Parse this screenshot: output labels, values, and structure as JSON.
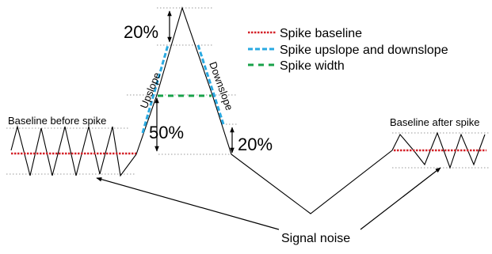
{
  "labels": {
    "pct_top": "20%",
    "pct_mid": "50%",
    "pct_right": "20%",
    "upslope": "Upslope",
    "downslope": "Downslope",
    "baseline_before": "Baseline before spike",
    "baseline_after": "Baseline after spike",
    "signal_noise": "Signal noise"
  },
  "legend": {
    "items": [
      {
        "label": "Spike baseline",
        "color": "#d4232a"
      },
      {
        "label": "Spike upslope and downslope",
        "color": "#29a9e1"
      },
      {
        "label": "Spike width",
        "color": "#1aa24a"
      }
    ]
  },
  "colors": {
    "signal": "#000000",
    "guides": "#9a9a9a"
  }
}
